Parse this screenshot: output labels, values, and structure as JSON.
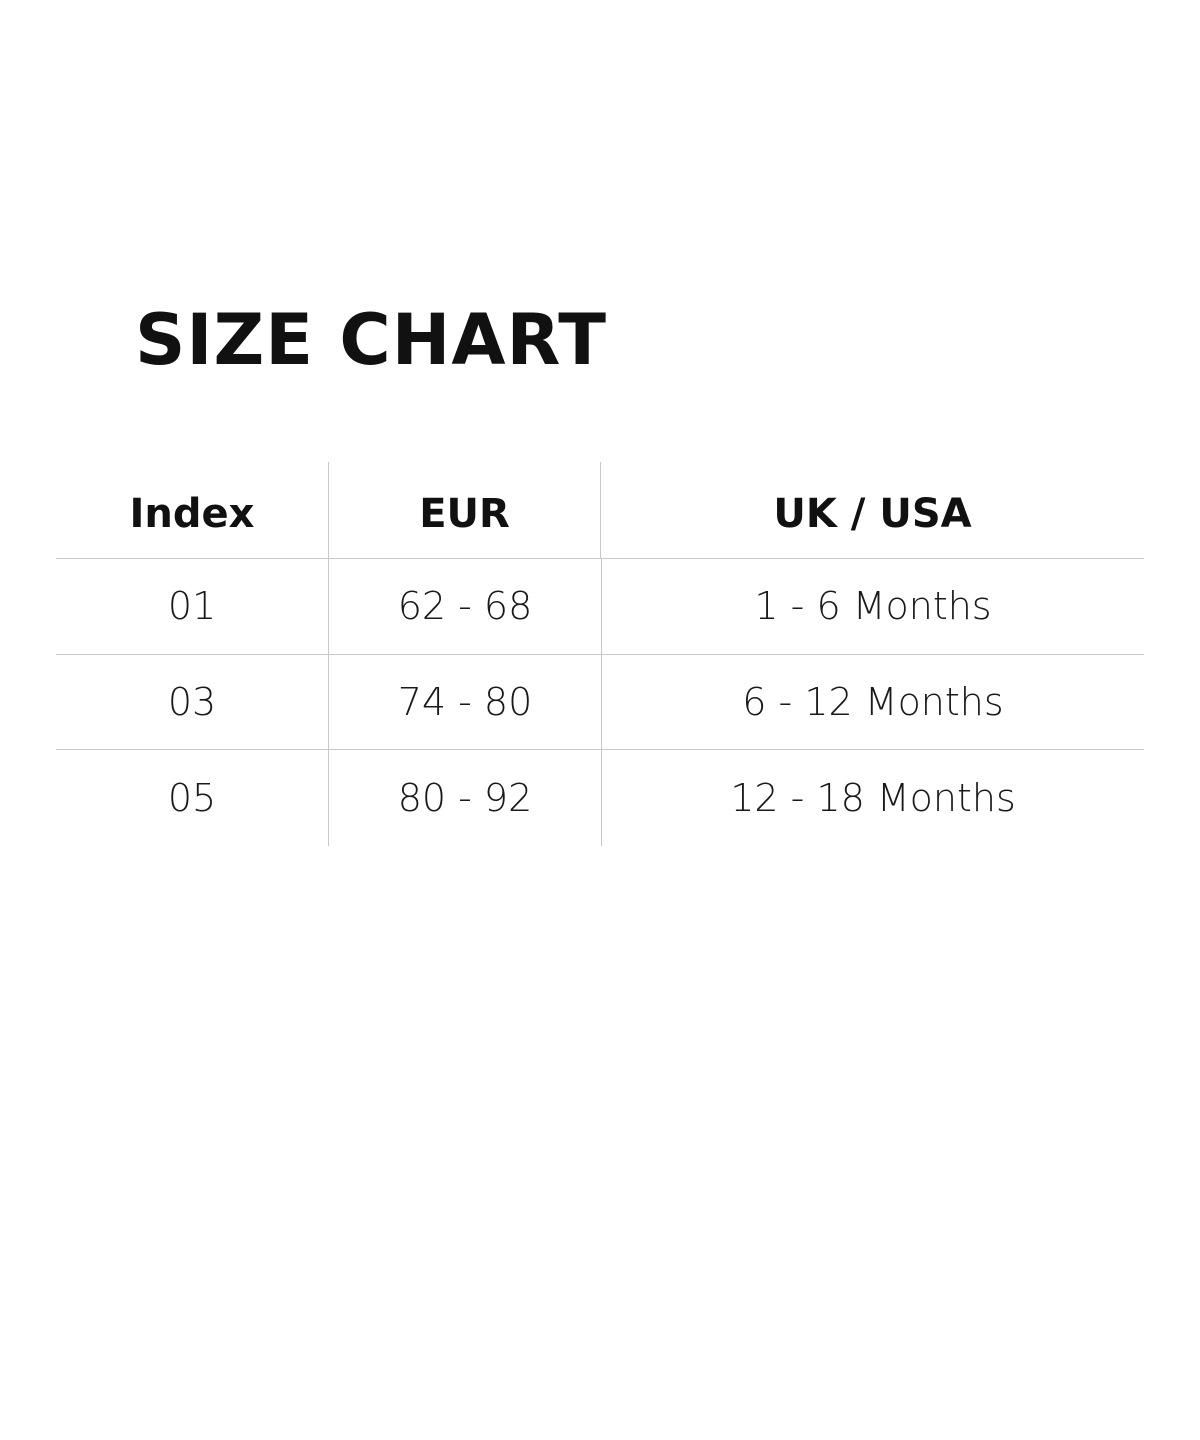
{
  "title": "SIZE CHART",
  "table": {
    "headers": [
      "Index",
      "EUR",
      "UK / USA"
    ],
    "rows": [
      [
        "01",
        "62 - 68",
        "1 - 6 Months"
      ],
      [
        "03",
        "74 - 80",
        "6 - 12 Months"
      ],
      [
        "05",
        "80 - 92",
        "12 - 18 Months"
      ]
    ]
  }
}
